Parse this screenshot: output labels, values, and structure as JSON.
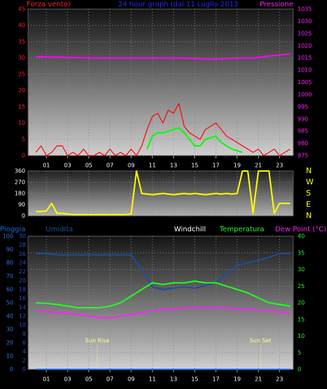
{
  "chart_data": [
    {
      "type": "line",
      "title": "24 hour graph (dal 11 Luglio 2013",
      "ylabel": "Forza vento)",
      "y2label": "Pressione",
      "ycolor": "#ff2020",
      "y2color": "#ff20ff",
      "title_color": "#2828ff",
      "x": [
        0,
        0.5,
        1,
        1.5,
        2,
        2.5,
        3,
        3.5,
        4,
        4.5,
        5,
        5.5,
        6,
        6.5,
        7,
        7.5,
        8,
        8.5,
        9,
        9.5,
        10,
        10.5,
        11,
        11.5,
        12,
        12.5,
        13,
        13.5,
        14,
        14.5,
        15,
        15.5,
        16,
        16.5,
        17,
        17.5,
        18,
        18.5,
        19,
        19.5,
        20,
        20.5,
        21,
        21.5,
        22,
        22.5,
        23,
        23.5,
        24
      ],
      "xlim": [
        -0.73,
        24.3
      ],
      "xticks": [
        {
          "value": 1,
          "label": "01"
        },
        {
          "value": 3,
          "label": "03"
        },
        {
          "value": 5,
          "label": "05"
        },
        {
          "value": 7,
          "label": "07"
        },
        {
          "value": 9,
          "label": "09"
        },
        {
          "value": 11,
          "label": "11"
        },
        {
          "value": 13,
          "label": "13"
        },
        {
          "value": 15,
          "label": "15"
        },
        {
          "value": 17,
          "label": "17"
        },
        {
          "value": 19,
          "label": "19"
        },
        {
          "value": 21,
          "label": "21"
        },
        {
          "value": 23,
          "label": "23"
        }
      ],
      "ylim": [
        0,
        45
      ],
      "yticks": [
        0,
        5,
        10,
        15,
        20,
        25,
        30,
        35,
        40,
        45
      ],
      "y2lim": [
        975,
        1035
      ],
      "y2ticks": [
        975,
        980,
        985,
        990,
        995,
        1000,
        1005,
        1010,
        1015,
        1020,
        1025,
        1030,
        1035
      ],
      "grid": true,
      "series": [
        {
          "color": "#ff0000",
          "values": [
            1,
            3,
            0,
            1,
            3,
            3,
            0,
            1,
            0,
            2,
            0,
            0,
            1,
            0,
            2,
            0,
            1,
            0,
            2,
            0,
            3,
            8,
            12,
            13,
            10,
            14,
            13,
            16,
            9,
            7,
            6,
            5,
            8,
            9,
            10,
            8,
            6,
            5,
            4,
            3,
            2,
            1,
            2,
            0,
            1,
            2,
            0,
            1,
            2
          ]
        },
        {
          "color": "#00ff00",
          "values": [
            null,
            null,
            null,
            null,
            null,
            null,
            null,
            null,
            null,
            null,
            null,
            null,
            null,
            null,
            null,
            null,
            null,
            null,
            null,
            null,
            null,
            2,
            6,
            7,
            7,
            7.5,
            8,
            8.5,
            7,
            5,
            3,
            3,
            5,
            5.5,
            6,
            4,
            3,
            2,
            1.5,
            1,
            null,
            null,
            null,
            null,
            null,
            null,
            null,
            null,
            null
          ]
        },
        {
          "color": "#ff00ff",
          "axis": "y2",
          "values": [
            1015.5,
            1015.5,
            1015.4,
            1015.4,
            1015.3,
            1015.3,
            1015.2,
            1015.2,
            1015.1,
            1015.1,
            1015,
            1015,
            1015,
            1015,
            1015,
            1015,
            1015,
            1015,
            1015,
            1015,
            1015,
            1015,
            1015,
            1015,
            1015,
            1015,
            1015,
            1015,
            1014.9,
            1014.8,
            1014.7,
            1014.6,
            1014.5,
            1014.5,
            1014.5,
            1014.6,
            1014.7,
            1014.8,
            1014.9,
            1015,
            1015,
            1015,
            1015.2,
            1015.5,
            1015.8,
            1016,
            1016.2,
            1016.4,
            1016.6
          ]
        }
      ]
    },
    {
      "type": "line",
      "ycolor": "#ffffff",
      "y2color": "#ffff00",
      "x": [
        0,
        0.5,
        1,
        1.5,
        2,
        2.5,
        3,
        3.5,
        4,
        4.5,
        5,
        5.5,
        6,
        6.5,
        7,
        7.5,
        8,
        8.5,
        9,
        9.5,
        10,
        10.5,
        11,
        11.5,
        12,
        12.5,
        13,
        13.5,
        14,
        14.5,
        15,
        15.5,
        16,
        16.5,
        17,
        17.5,
        18,
        18.5,
        19,
        19.5,
        20,
        20.5,
        21,
        21.5,
        22,
        22.5,
        23,
        23.5,
        24
      ],
      "xlim": [
        -0.73,
        24.3
      ],
      "xticks": [
        {
          "value": 1,
          "label": "01"
        },
        {
          "value": 3,
          "label": "03"
        },
        {
          "value": 5,
          "label": "05"
        },
        {
          "value": 7,
          "label": "07"
        },
        {
          "value": 9,
          "label": "09"
        },
        {
          "value": 11,
          "label": "11"
        },
        {
          "value": 13,
          "label": "13"
        },
        {
          "value": 15,
          "label": "15"
        },
        {
          "value": 17,
          "label": "17"
        },
        {
          "value": 19,
          "label": "19"
        },
        {
          "value": 21,
          "label": "21"
        },
        {
          "value": 23,
          "label": "23"
        }
      ],
      "ylim": [
        0,
        360
      ],
      "yticks": [
        0,
        90,
        180,
        270,
        360
      ],
      "y2lim": [
        0,
        360
      ],
      "y2ticks": [
        {
          "value": 0,
          "label": "N"
        },
        {
          "value": 90,
          "label": "E"
        },
        {
          "value": 180,
          "label": "S"
        },
        {
          "value": 270,
          "label": "W"
        },
        {
          "value": 360,
          "label": "N"
        }
      ],
      "grid": true,
      "series": [
        {
          "color": "#ffff00",
          "values": [
            35,
            35,
            40,
            100,
            20,
            20,
            15,
            10,
            10,
            10,
            10,
            10,
            10,
            10,
            10,
            10,
            10,
            10,
            15,
            360,
            180,
            175,
            170,
            175,
            180,
            175,
            170,
            175,
            180,
            175,
            180,
            175,
            170,
            175,
            180,
            175,
            180,
            175,
            180,
            360,
            360,
            20,
            360,
            360,
            360,
            20,
            100,
            100,
            100
          ]
        }
      ]
    },
    {
      "type": "line",
      "extra_label": "Windchill",
      "ycolor": "#2a78e8",
      "y3color": "#2a4fc8",
      "y2color": "#20ff20",
      "x": [
        0,
        1,
        2,
        3,
        4,
        5,
        6,
        7,
        8,
        9,
        10,
        11,
        12,
        13,
        14,
        15,
        16,
        17,
        18,
        19,
        20,
        21,
        22,
        23,
        24
      ],
      "xlim": [
        -0.73,
        24.3
      ],
      "xticks": [
        {
          "value": 1,
          "label": "01"
        },
        {
          "value": 3,
          "label": "03"
        },
        {
          "value": 5,
          "label": "05"
        },
        {
          "value": 7,
          "label": "07"
        },
        {
          "value": 9,
          "label": "09"
        },
        {
          "value": 11,
          "label": "11"
        },
        {
          "value": 13,
          "label": "13"
        },
        {
          "value": 15,
          "label": "15"
        },
        {
          "value": 17,
          "label": "17"
        },
        {
          "value": 19,
          "label": "19"
        },
        {
          "value": 21,
          "label": "21"
        },
        {
          "value": 23,
          "label": "23"
        }
      ],
      "ylim": [
        0,
        100
      ],
      "yticks": [
        0,
        10,
        20,
        30,
        40,
        50,
        60,
        70,
        80,
        90,
        100
      ],
      "y3lim": [
        0,
        30
      ],
      "y3ticks": [
        0,
        2,
        4,
        6,
        8,
        10,
        12,
        14,
        16,
        18,
        20,
        22,
        24,
        26,
        28,
        30
      ],
      "y2lim": [
        0,
        40
      ],
      "y2ticks": [
        0,
        5,
        10,
        15,
        20,
        25,
        30,
        35,
        40
      ],
      "grid": true,
      "annotations": [
        {
          "text": "Sun Rise",
          "x": 5.8
        },
        {
          "text": "Sun Set",
          "x": 21.2
        }
      ],
      "series": [
        {
          "name": "Pioggia",
          "color": "#1e6ad8",
          "values": [
            0,
            0,
            0,
            0,
            0,
            0,
            0,
            0,
            0,
            0,
            0,
            0,
            0,
            0,
            0,
            0,
            0,
            0,
            0,
            0,
            0,
            0,
            0,
            0,
            0
          ]
        },
        {
          "name": "Umidita",
          "color": "#1a4fa0",
          "values": [
            87,
            87,
            86,
            86,
            86,
            86,
            86,
            86,
            86,
            86,
            75,
            62,
            60,
            61,
            62,
            61,
            63,
            65,
            72,
            78,
            80,
            82,
            84,
            87,
            87
          ]
        },
        {
          "name": "Temperatura",
          "color": "#20ff20",
          "axis": "y2",
          "values": [
            20,
            19.8,
            19.5,
            19,
            18.5,
            18.5,
            18.5,
            19,
            20,
            22,
            24,
            26,
            25.5,
            26,
            26,
            26.5,
            26,
            26,
            25,
            24,
            23,
            21.5,
            20,
            19.5,
            19
          ]
        },
        {
          "name": "Dew Point (°C)",
          "color": "#ff20ff",
          "axis": "y2",
          "values": [
            17.5,
            17.3,
            17,
            16.8,
            16.5,
            16,
            15.5,
            15.5,
            16,
            16.5,
            17,
            17.5,
            18,
            18.2,
            18.5,
            18.5,
            18.5,
            18.5,
            18.5,
            18.2,
            18,
            17.8,
            17.5,
            17.2,
            17
          ]
        }
      ]
    }
  ]
}
